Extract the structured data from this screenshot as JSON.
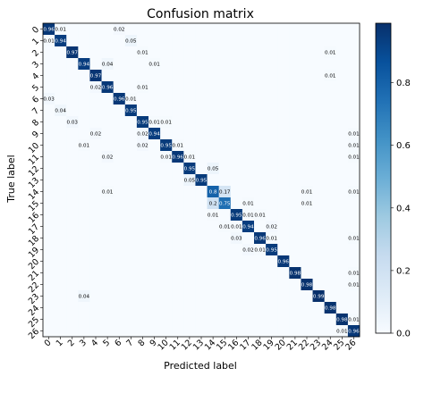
{
  "chart_data": {
    "type": "heatmap",
    "title": "Confusion matrix",
    "xlabel": "Predicted label",
    "ylabel": "True label",
    "labels": [
      "0",
      "1",
      "2",
      "3",
      "4",
      "5",
      "6",
      "7",
      "8",
      "9",
      "10",
      "11",
      "12",
      "13",
      "14",
      "15",
      "16",
      "17",
      "18",
      "19",
      "20",
      "21",
      "22",
      "23",
      "24",
      "25",
      "26"
    ],
    "diagonal": [
      0.96,
      0.94,
      0.97,
      0.94,
      0.97,
      0.96,
      0.96,
      0.95,
      0.95,
      0.94,
      0.95,
      0.96,
      0.95,
      0.95,
      0.8,
      0.75,
      0.95,
      0.94,
      0.96,
      0.95,
      0.96,
      0.98,
      0.98,
      0.99,
      0.98,
      0.98,
      0.96
    ],
    "off_diagonal": [
      {
        "row": 0,
        "col": 1,
        "value": 0.01
      },
      {
        "row": 0,
        "col": 6,
        "value": 0.02
      },
      {
        "row": 1,
        "col": 0,
        "value": 0.01
      },
      {
        "row": 1,
        "col": 7,
        "value": 0.05
      },
      {
        "row": 2,
        "col": 8,
        "value": 0.01
      },
      {
        "row": 2,
        "col": 24,
        "value": 0.01
      },
      {
        "row": 3,
        "col": 5,
        "value": 0.04
      },
      {
        "row": 3,
        "col": 9,
        "value": 0.01
      },
      {
        "row": 4,
        "col": 24,
        "value": 0.01
      },
      {
        "row": 5,
        "col": 4,
        "value": 0.02
      },
      {
        "row": 5,
        "col": 8,
        "value": 0.01
      },
      {
        "row": 6,
        "col": 0,
        "value": 0.03
      },
      {
        "row": 6,
        "col": 7,
        "value": 0.01
      },
      {
        "row": 7,
        "col": 1,
        "value": 0.04
      },
      {
        "row": 8,
        "col": 2,
        "value": 0.03
      },
      {
        "row": 8,
        "col": 9,
        "value": 0.01
      },
      {
        "row": 8,
        "col": 10,
        "value": 0.01
      },
      {
        "row": 9,
        "col": 4,
        "value": 0.02
      },
      {
        "row": 9,
        "col": 8,
        "value": 0.02
      },
      {
        "row": 9,
        "col": 26,
        "value": 0.01
      },
      {
        "row": 10,
        "col": 3,
        "value": 0.01
      },
      {
        "row": 10,
        "col": 8,
        "value": 0.02
      },
      {
        "row": 10,
        "col": 11,
        "value": 0.01
      },
      {
        "row": 10,
        "col": 26,
        "value": 0.01
      },
      {
        "row": 11,
        "col": 5,
        "value": 0.02
      },
      {
        "row": 11,
        "col": 10,
        "value": 0.01
      },
      {
        "row": 11,
        "col": 12,
        "value": 0.01
      },
      {
        "row": 11,
        "col": 26,
        "value": 0.01
      },
      {
        "row": 12,
        "col": 14,
        "value": 0.05
      },
      {
        "row": 13,
        "col": 12,
        "value": 0.05
      },
      {
        "row": 14,
        "col": 5,
        "value": 0.01
      },
      {
        "row": 14,
        "col": 15,
        "value": 0.17
      },
      {
        "row": 14,
        "col": 22,
        "value": 0.01
      },
      {
        "row": 14,
        "col": 26,
        "value": 0.01
      },
      {
        "row": 15,
        "col": 14,
        "value": 0.2
      },
      {
        "row": 15,
        "col": 17,
        "value": 0.01
      },
      {
        "row": 15,
        "col": 22,
        "value": 0.01
      },
      {
        "row": 16,
        "col": 14,
        "value": 0.01
      },
      {
        "row": 16,
        "col": 17,
        "value": 0.01
      },
      {
        "row": 16,
        "col": 18,
        "value": 0.01
      },
      {
        "row": 17,
        "col": 15,
        "value": 0.01
      },
      {
        "row": 17,
        "col": 16,
        "value": 0.01
      },
      {
        "row": 17,
        "col": 19,
        "value": 0.02
      },
      {
        "row": 18,
        "col": 16,
        "value": 0.03
      },
      {
        "row": 18,
        "col": 19,
        "value": 0.01
      },
      {
        "row": 18,
        "col": 26,
        "value": 0.01
      },
      {
        "row": 19,
        "col": 17,
        "value": 0.02
      },
      {
        "row": 19,
        "col": 18,
        "value": 0.01
      },
      {
        "row": 21,
        "col": 26,
        "value": 0.01
      },
      {
        "row": 22,
        "col": 26,
        "value": 0.01
      },
      {
        "row": 23,
        "col": 3,
        "value": 0.04
      },
      {
        "row": 25,
        "col": 26,
        "value": 0.01
      },
      {
        "row": 26,
        "col": 25,
        "value": 0.01
      }
    ],
    "colorbar": {
      "min": 0.0,
      "max": 0.99,
      "ticks": [
        "0.0",
        "0.2",
        "0.4",
        "0.6",
        "0.8"
      ],
      "colors": [
        "#f7fbff",
        "#deebf7",
        "#c6dbef",
        "#9ecae1",
        "#6baed6",
        "#4292c6",
        "#2171b5",
        "#08519c",
        "#08306b"
      ]
    }
  }
}
